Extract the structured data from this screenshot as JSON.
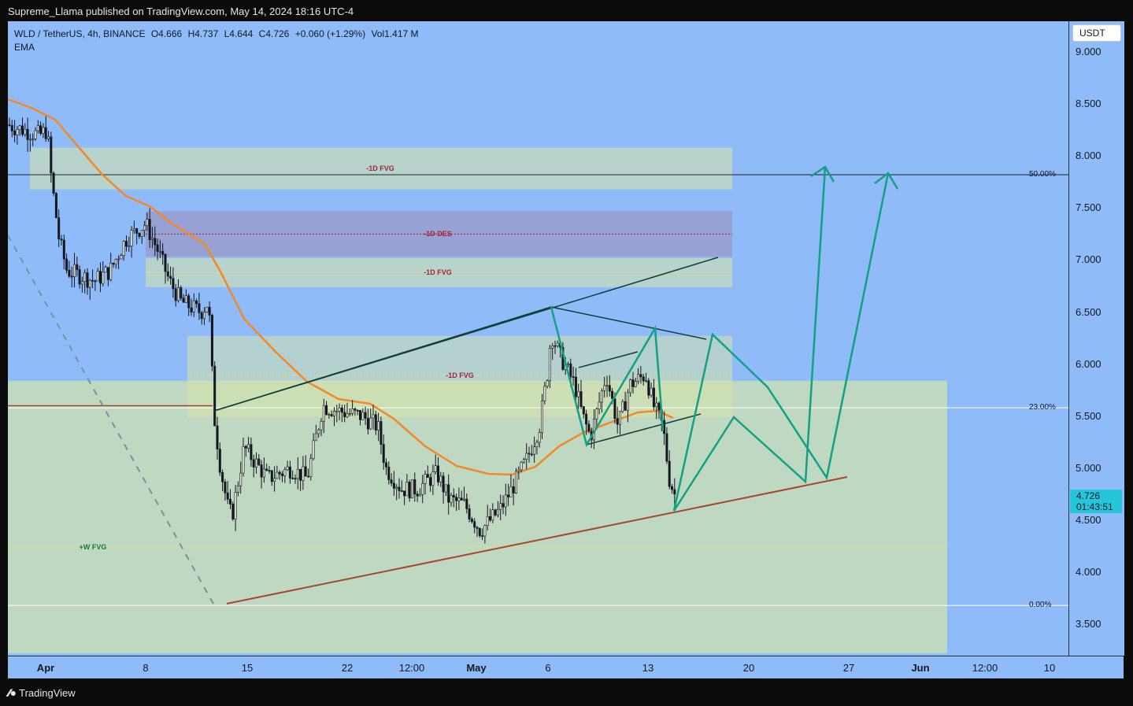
{
  "header": {
    "publisher": "Supreme_Llama published on TradingView.com, May 14, 2024 18:16 UTC-4"
  },
  "legend": {
    "symbol": "WLD / TetherUS, 4h, BINANCE",
    "open": "O4.666",
    "high": "H4.737",
    "low": "L4.644",
    "close": "C4.726",
    "change": "+0.060 (+1.29%)",
    "volume": "Vol1.417 M",
    "indicator": "EMA"
  },
  "axis": {
    "unit_button": "USDT"
  },
  "price_tag": {
    "price": "4.726",
    "countdown": "01:43:51"
  },
  "footer": {
    "brand": "TradingView",
    "brand_icon": "tradingview-logo-icon"
  },
  "colors": {
    "background": "#8fbcf8",
    "zone_fill": "#d9e6a5",
    "des_zone": "#9a9ccc",
    "ema": "#f0892a",
    "projection": "#14a085",
    "support_line": "#a3482a",
    "price_tag": "#26c6da"
  },
  "chart_data": {
    "type": "candlestick",
    "title": "",
    "xlabel": "",
    "ylabel": "",
    "ylim": [
      3.2,
      9.3
    ],
    "yticks": [
      "9.000",
      "8.500",
      "8.000",
      "7.500",
      "7.000",
      "6.500",
      "6.000",
      "5.500",
      "5.000",
      "4.500",
      "4.000",
      "3.500"
    ],
    "xticks": [
      "Apr",
      "8",
      "15",
      "22",
      "12:00",
      "May",
      "6",
      "13",
      "20",
      "27",
      "Jun",
      "12:00",
      "10"
    ],
    "fib_levels": [
      {
        "label": "50.00%",
        "price": 7.82
      },
      {
        "label": "23.00%",
        "price": 5.58
      },
      {
        "label": "0.00%",
        "price": 3.68
      }
    ],
    "zones": [
      {
        "label": "-1D FVG",
        "top": 8.08,
        "bottom": 7.68
      },
      {
        "label": "-1D DES",
        "top": 7.47,
        "bottom": 7.03
      },
      {
        "label": "-1D FVG",
        "top": 7.02,
        "bottom": 6.74
      },
      {
        "label": "-1D FVG",
        "top": 6.27,
        "bottom": 5.49
      },
      {
        "label": "+W FVG",
        "top": 5.84,
        "bottom": 3.22
      }
    ],
    "last": {
      "open": 4.666,
      "high": 4.737,
      "low": 4.644,
      "close": 4.726
    }
  }
}
